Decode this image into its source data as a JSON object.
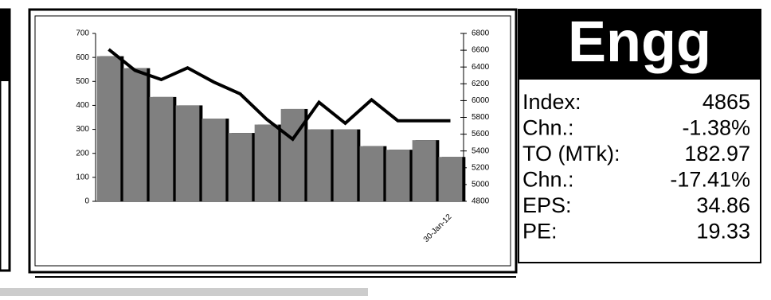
{
  "chart_data": {
    "type": "bar",
    "categories": [
      null,
      null,
      null,
      null,
      null,
      null,
      null,
      null,
      null,
      null,
      null,
      null,
      null,
      "30-Jan-12"
    ],
    "series": [
      {
        "type": "bar",
        "color": "#808080",
        "values": [
          605,
          555,
          435,
          400,
          345,
          285,
          320,
          385,
          300,
          300,
          230,
          215,
          255,
          185
        ]
      },
      {
        "type": "line",
        "color": "#000000",
        "axis": "y2",
        "values": [
          6610,
          6360,
          6250,
          6390,
          6220,
          6080,
          5780,
          5540,
          5980,
          5730,
          6010,
          5760,
          5760,
          5760
        ]
      }
    ],
    "ylim": [
      0,
      700
    ],
    "yticks": [
      0,
      100,
      200,
      300,
      400,
      500,
      600,
      700
    ],
    "y2lim": [
      4800,
      6800
    ],
    "y2ticks": [
      4800,
      5000,
      5200,
      5400,
      5600,
      5800,
      6000,
      6200,
      6400,
      6600,
      6800
    ]
  },
  "stats": {
    "title": "Engg",
    "rows": [
      [
        "Index:",
        "4865"
      ],
      [
        "Chn.:",
        "-1.38%"
      ],
      [
        "TO (MTk):",
        "182.97"
      ],
      [
        "Chn.:",
        "-17.41%"
      ],
      [
        "EPS:",
        "34.86"
      ],
      [
        "PE:",
        "19.33"
      ]
    ]
  }
}
